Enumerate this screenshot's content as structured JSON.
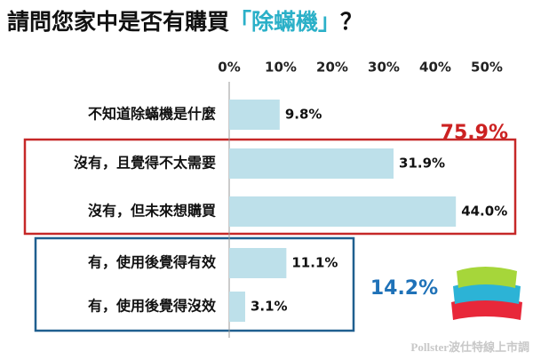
{
  "chart_data": {
    "type": "hbar",
    "title_parts": [
      {
        "text": "請問您家中是否有購買",
        "color": "#111111"
      },
      {
        "text": "「除蟎機」",
        "color": "#2bb0c8"
      },
      {
        "text": "？",
        "color": "#111111"
      }
    ],
    "categories": [
      "不知道除蟎機是什麼",
      "沒有，且覺得不太需要",
      "沒有，但未來想購買",
      "有，使用後覺得有效",
      "有，使用後覺得沒效"
    ],
    "values": [
      9.8,
      31.9,
      44.0,
      11.1,
      3.1
    ],
    "value_labels": [
      "9.8%",
      "31.9%",
      "44.0%",
      "11.1%",
      "3.1%"
    ],
    "color": "#bde0ea",
    "xlim": [
      0,
      50
    ],
    "xticks": [
      {
        "value": 0,
        "label": "0%"
      },
      {
        "value": 10,
        "label": "10%"
      },
      {
        "value": 20,
        "label": "20%"
      },
      {
        "value": 30,
        "label": "30%"
      },
      {
        "value": 40,
        "label": "40%"
      },
      {
        "value": 50,
        "label": "50%"
      }
    ],
    "annotations": [
      {
        "text": "75.9%",
        "color": "#cc2222"
      },
      {
        "text": "14.2%",
        "color": "#1f72b8"
      }
    ],
    "source": "Pollster波仕特線上市調"
  }
}
